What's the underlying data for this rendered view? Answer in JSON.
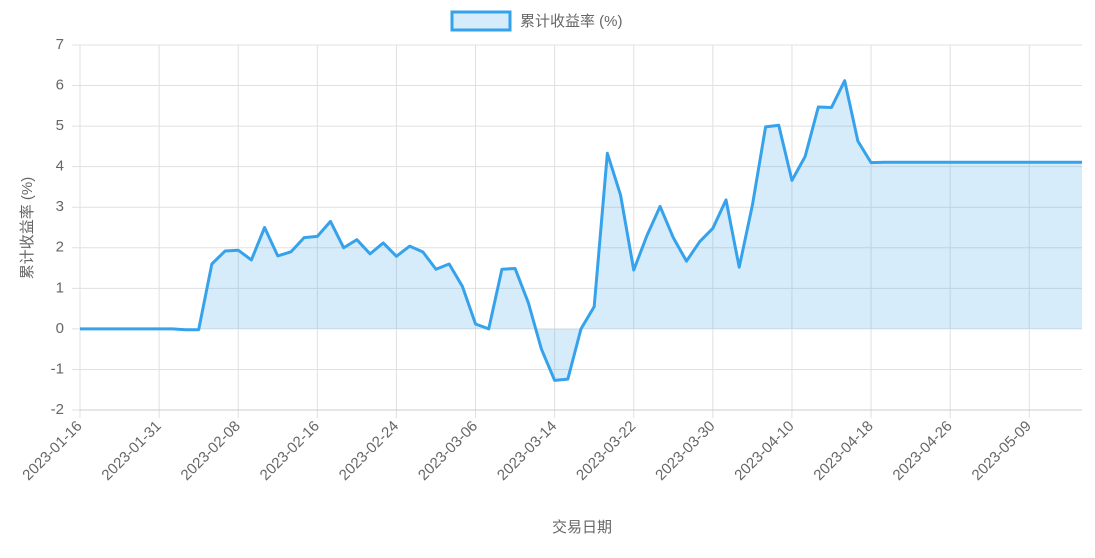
{
  "chart_data": {
    "type": "line",
    "x_label": "交易日期",
    "y_label": "累计收益率 (%)",
    "categories": [
      "2023-01-16",
      null,
      null,
      null,
      null,
      null,
      "2023-01-31",
      null,
      null,
      null,
      null,
      null,
      "2023-02-08",
      null,
      null,
      null,
      null,
      null,
      "2023-02-16",
      null,
      null,
      null,
      null,
      null,
      "2023-02-24",
      null,
      null,
      null,
      null,
      null,
      "2023-03-06",
      null,
      null,
      null,
      null,
      null,
      "2023-03-14",
      null,
      null,
      null,
      null,
      null,
      "2023-03-22",
      null,
      null,
      null,
      null,
      null,
      "2023-03-30",
      null,
      null,
      null,
      null,
      null,
      "2023-04-10",
      null,
      null,
      null,
      null,
      null,
      "2023-04-18",
      null,
      null,
      null,
      null,
      null,
      "2023-04-26",
      null,
      null,
      null,
      null,
      null,
      "2023-05-09",
      null,
      null,
      null,
      null
    ],
    "series": [
      {
        "name": "累计收益率 (%)",
        "color": "#36a2eb",
        "fill": "rgba(54,162,235,0.2)",
        "values": [
          0,
          0,
          0,
          0,
          0,
          0,
          0,
          0,
          -0.02,
          -0.02,
          1.6,
          1.92,
          1.94,
          1.7,
          2.5,
          1.8,
          1.9,
          2.25,
          2.28,
          2.65,
          2.0,
          2.2,
          1.85,
          2.12,
          1.79,
          2.04,
          1.9,
          1.47,
          1.6,
          1.05,
          0.12,
          0.0,
          1.47,
          1.49,
          0.65,
          -0.5,
          -1.27,
          -1.24,
          0.0,
          0.55,
          4.33,
          3.3,
          1.45,
          2.3,
          3.02,
          2.25,
          1.67,
          2.15,
          2.48,
          3.18,
          1.52,
          3.05,
          4.98,
          5.02,
          3.66,
          4.25,
          5.47,
          5.46,
          6.12,
          4.63,
          4.1,
          4.11,
          4.11,
          4.11,
          4.11,
          4.11,
          4.11,
          4.11,
          4.11,
          4.11,
          4.11,
          4.11,
          4.11,
          4.11,
          4.11,
          4.11,
          4.11
        ]
      }
    ],
    "ylim": [
      -2,
      7
    ],
    "yticks": [
      -2,
      -1,
      0,
      1,
      2,
      3,
      4,
      5,
      6,
      7
    ],
    "grid": true,
    "legend": "top"
  }
}
